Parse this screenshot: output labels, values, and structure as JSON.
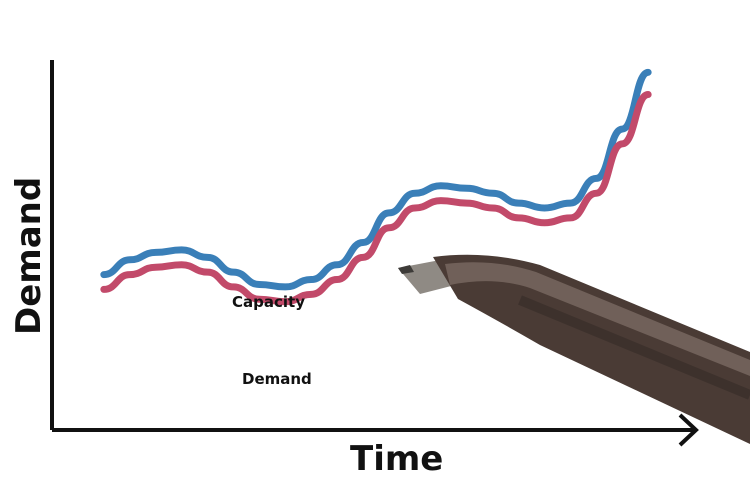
{
  "chart_data": {
    "type": "line",
    "title": "",
    "xlabel": "Time",
    "ylabel": "Demand",
    "grid": false,
    "legend": "none",
    "series": [
      {
        "name": "Capacity",
        "color": "#3a7fb8",
        "points": [
          [
            0.08,
            0.63
          ],
          [
            0.12,
            0.69
          ],
          [
            0.16,
            0.72
          ],
          [
            0.2,
            0.73
          ],
          [
            0.24,
            0.7
          ],
          [
            0.28,
            0.64
          ],
          [
            0.32,
            0.59
          ],
          [
            0.36,
            0.58
          ],
          [
            0.4,
            0.61
          ],
          [
            0.44,
            0.67
          ],
          [
            0.48,
            0.76
          ],
          [
            0.52,
            0.88
          ],
          [
            0.56,
            0.96
          ],
          [
            0.6,
            0.99
          ],
          [
            0.64,
            0.98
          ],
          [
            0.68,
            0.96
          ],
          [
            0.72,
            0.92
          ],
          [
            0.76,
            0.9
          ],
          [
            0.8,
            0.92
          ],
          [
            0.84,
            1.02
          ],
          [
            0.88,
            1.22
          ],
          [
            0.92,
            1.45
          ]
        ]
      },
      {
        "name": "Demand",
        "color": "#c24a6a",
        "points": [
          [
            0.08,
            0.57
          ],
          [
            0.12,
            0.63
          ],
          [
            0.16,
            0.66
          ],
          [
            0.2,
            0.67
          ],
          [
            0.24,
            0.64
          ],
          [
            0.28,
            0.58
          ],
          [
            0.32,
            0.53
          ],
          [
            0.36,
            0.52
          ],
          [
            0.4,
            0.55
          ],
          [
            0.44,
            0.61
          ],
          [
            0.48,
            0.7
          ],
          [
            0.52,
            0.82
          ],
          [
            0.56,
            0.9
          ],
          [
            0.6,
            0.93
          ],
          [
            0.64,
            0.92
          ],
          [
            0.68,
            0.9
          ],
          [
            0.72,
            0.86
          ],
          [
            0.76,
            0.84
          ],
          [
            0.8,
            0.86
          ],
          [
            0.84,
            0.96
          ],
          [
            0.88,
            1.16
          ],
          [
            0.92,
            1.36
          ]
        ]
      }
    ],
    "labels": {
      "capacity": "Capacity",
      "demand": "Demand"
    },
    "xlim": [
      0,
      1
    ],
    "ylim": [
      0,
      1.5
    ]
  },
  "pen": {
    "description_icon": "pen-icon"
  }
}
